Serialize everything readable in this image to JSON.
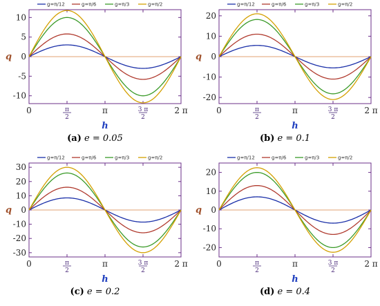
{
  "colors": {
    "frame": "#6b2f8a",
    "zero_line": "#e0a070",
    "ylabel": "#a0522d",
    "xlabel": "#1f3fbf",
    "series": [
      "#1a2fa8",
      "#b03a2e",
      "#3a9a28",
      "#d4a000"
    ]
  },
  "legend_labels": [
    "g=π/12",
    "g=π/6",
    "g=π/3",
    "g=π/2"
  ],
  "x_tick_labels": [
    "0",
    "π",
    "2 π"
  ],
  "x_tick_fracs": [
    {
      "num": "π",
      "den": "2"
    },
    {
      "num": "3 π",
      "den": "2"
    }
  ],
  "chart_data": [
    {
      "type": "line",
      "caption_tag": "(a)",
      "caption_expr": "e = 0.05",
      "xlabel": "h",
      "ylabel": "q",
      "xlim": [
        0,
        6.283
      ],
      "ylim": [
        -12,
        12
      ],
      "yticks": [
        -10,
        -5,
        0,
        5,
        10
      ],
      "series": [
        {
          "name": "g=π/12",
          "amplitude": 3.0
        },
        {
          "name": "g=π/6",
          "amplitude": 5.8
        },
        {
          "name": "g=π/3",
          "amplitude": 10.0
        },
        {
          "name": "g=π/2",
          "amplitude": 11.8
        }
      ]
    },
    {
      "type": "line",
      "caption_tag": "(b)",
      "caption_expr": "e = 0.1",
      "xlabel": "h",
      "ylabel": "q",
      "xlim": [
        0,
        6.283
      ],
      "ylim": [
        -23,
        23
      ],
      "yticks": [
        -20,
        -10,
        0,
        10,
        20
      ],
      "series": [
        {
          "name": "g=π/12",
          "amplitude": 5.5
        },
        {
          "name": "g=π/6",
          "amplitude": 11.0
        },
        {
          "name": "g=π/3",
          "amplitude": 18.2
        },
        {
          "name": "g=π/2",
          "amplitude": 21.0
        }
      ]
    },
    {
      "type": "line",
      "caption_tag": "(c)",
      "caption_expr": "e = 0.2",
      "xlabel": "h",
      "ylabel": "q",
      "xlim": [
        0,
        6.283
      ],
      "ylim": [
        -33,
        33
      ],
      "yticks": [
        -30,
        -20,
        -10,
        0,
        10,
        20,
        30
      ],
      "series": [
        {
          "name": "g=π/12",
          "amplitude": 8.5
        },
        {
          "name": "g=π/6",
          "amplitude": 16.0
        },
        {
          "name": "g=π/3",
          "amplitude": 26.0
        },
        {
          "name": "g=π/2",
          "amplitude": 30.0
        }
      ]
    },
    {
      "type": "line",
      "caption_tag": "(d)",
      "caption_expr": "e = 0.4",
      "xlabel": "h",
      "ylabel": "q",
      "xlim": [
        0,
        6.283
      ],
      "ylim": [
        -25,
        25
      ],
      "yticks": [
        -20,
        -10,
        0,
        10,
        20
      ],
      "series": [
        {
          "name": "g=π/12",
          "amplitude": 7.0
        },
        {
          "name": "g=π/6",
          "amplitude": 13.0
        },
        {
          "name": "g=π/3",
          "amplitude": 20.0
        },
        {
          "name": "g=π/2",
          "amplitude": 22.5
        }
      ]
    }
  ]
}
